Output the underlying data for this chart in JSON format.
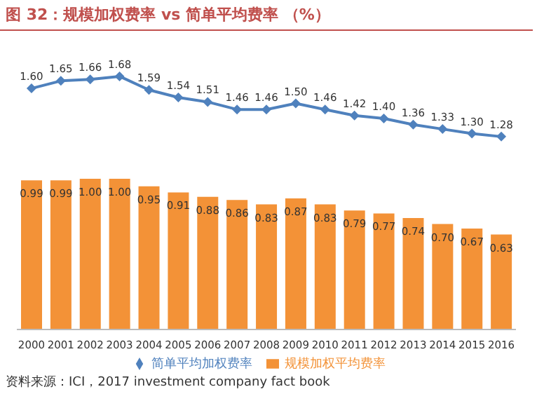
{
  "chart_data": {
    "type": "bar",
    "title": "图 32：规模加权费率 vs 简单平均费率 （%）",
    "categories": [
      "2000",
      "2001",
      "2002",
      "2003",
      "2004",
      "2005",
      "2006",
      "2007",
      "2008",
      "2009",
      "2010",
      "2011",
      "2012",
      "2013",
      "2014",
      "2015",
      "2016"
    ],
    "series": [
      {
        "name": "规模加权平均费率",
        "color": "#f39237",
        "values": [
          0.99,
          0.99,
          1.0,
          1.0,
          0.95,
          0.91,
          0.88,
          0.86,
          0.83,
          0.87,
          0.83,
          0.79,
          0.77,
          0.74,
          0.7,
          0.67,
          0.63
        ],
        "value_labels": [
          "0.99",
          "0.99",
          "1.00",
          "1.00",
          "0.95",
          "0.91",
          "0.88",
          "0.86",
          "0.83",
          "0.87",
          "0.83",
          "0.79",
          "0.77",
          "0.74",
          "0.70",
          "0.67",
          "0.63"
        ]
      },
      {
        "name": "简单平均加权费率",
        "type": "line",
        "color": "#4f81bd",
        "values": [
          1.6,
          1.65,
          1.66,
          1.68,
          1.59,
          1.54,
          1.51,
          1.46,
          1.46,
          1.5,
          1.46,
          1.42,
          1.4,
          1.36,
          1.33,
          1.3,
          1.28
        ],
        "value_labels": [
          "1.60",
          "1.65",
          "1.66",
          "1.68",
          "1.59",
          "1.54",
          "1.51",
          "1.46",
          "1.46",
          "1.50",
          "1.46",
          "1.42",
          "1.40",
          "1.36",
          "1.33",
          "1.30",
          "1.28"
        ]
      }
    ],
    "marker": "diamond",
    "legend": "bottom",
    "annotations": [
      "资料来源：ICI，2017 investment company fact book"
    ]
  }
}
